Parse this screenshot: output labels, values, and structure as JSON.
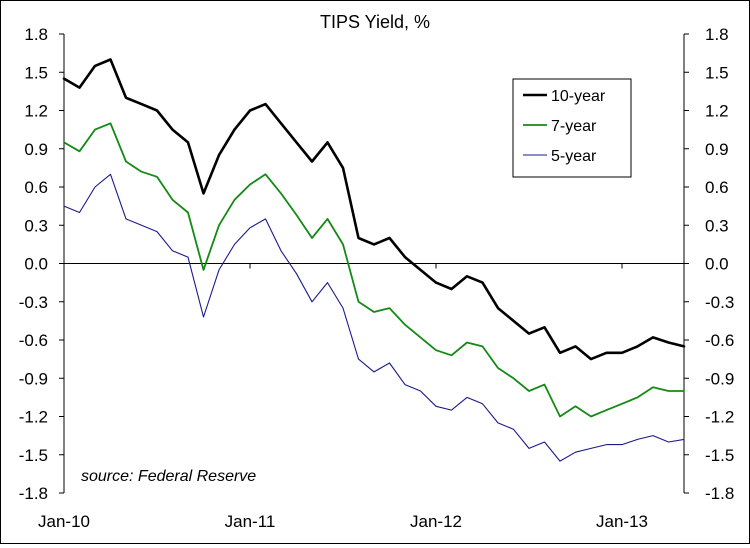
{
  "chart_data": {
    "type": "line",
    "title": "TIPS Yield, %",
    "annotation": "source: Federal Reserve",
    "ylim": [
      -1.8,
      1.8
    ],
    "y_ticks": [
      1.8,
      1.5,
      1.2,
      0.9,
      0.6,
      0.3,
      0.0,
      -0.3,
      -0.6,
      -0.9,
      -1.2,
      -1.5,
      -1.8
    ],
    "y_tick_labels": [
      "1.8",
      "1.5",
      "1.2",
      "0.9",
      "0.6",
      "0.3",
      "0.0",
      "-0.3",
      "-0.6",
      "-0.9",
      "-1.2",
      "-1.5",
      "-1.8"
    ],
    "secondary_y_axis": true,
    "x_ticks": [
      "2010-01",
      "2011-01",
      "2012-01",
      "2013-01"
    ],
    "x_tick_labels": [
      "Jan-10",
      "Jan-11",
      "Jan-12",
      "Jan-13"
    ],
    "xlim": [
      "2010-01",
      "2013-05"
    ],
    "legend": {
      "position": "top-right",
      "border": true
    },
    "grid": false,
    "x": [
      "2010-01",
      "2010-02",
      "2010-03",
      "2010-04",
      "2010-05",
      "2010-06",
      "2010-07",
      "2010-08",
      "2010-09",
      "2010-10",
      "2010-11",
      "2010-12",
      "2011-01",
      "2011-02",
      "2011-03",
      "2011-04",
      "2011-05",
      "2011-06",
      "2011-07",
      "2011-08",
      "2011-09",
      "2011-10",
      "2011-11",
      "2011-12",
      "2012-01",
      "2012-02",
      "2012-03",
      "2012-04",
      "2012-05",
      "2012-06",
      "2012-07",
      "2012-08",
      "2012-09",
      "2012-10",
      "2012-11",
      "2012-12",
      "2013-01",
      "2013-02",
      "2013-03",
      "2013-04",
      "2013-05"
    ],
    "series": [
      {
        "name": "10-year",
        "color": "#000000",
        "width": 2.6,
        "values": [
          1.45,
          1.38,
          1.55,
          1.6,
          1.3,
          1.25,
          1.2,
          1.05,
          0.95,
          0.55,
          0.85,
          1.05,
          1.2,
          1.25,
          1.1,
          0.95,
          0.8,
          0.95,
          0.75,
          0.2,
          0.15,
          0.2,
          0.05,
          -0.05,
          -0.15,
          -0.2,
          -0.1,
          -0.15,
          -0.35,
          -0.45,
          -0.55,
          -0.5,
          -0.7,
          -0.65,
          -0.75,
          -0.7,
          -0.7,
          -0.65,
          -0.58,
          -0.62,
          -0.65
        ]
      },
      {
        "name": "7-year",
        "color": "#138a13",
        "width": 1.8,
        "values": [
          0.95,
          0.88,
          1.05,
          1.1,
          0.8,
          0.72,
          0.68,
          0.5,
          0.4,
          -0.05,
          0.3,
          0.5,
          0.62,
          0.7,
          0.55,
          0.38,
          0.2,
          0.35,
          0.15,
          -0.3,
          -0.38,
          -0.35,
          -0.48,
          -0.58,
          -0.68,
          -0.72,
          -0.62,
          -0.65,
          -0.82,
          -0.9,
          -1.0,
          -0.95,
          -1.2,
          -1.12,
          -1.2,
          -1.15,
          -1.1,
          -1.05,
          -0.97,
          -1.0,
          -1.0
        ]
      },
      {
        "name": "5-year",
        "color": "#1a1a8a",
        "width": 1.1,
        "values": [
          0.45,
          0.4,
          0.6,
          0.7,
          0.35,
          0.3,
          0.25,
          0.1,
          0.05,
          -0.42,
          -0.05,
          0.15,
          0.28,
          0.35,
          0.1,
          -0.08,
          -0.3,
          -0.15,
          -0.35,
          -0.75,
          -0.85,
          -0.78,
          -0.95,
          -1.0,
          -1.12,
          -1.15,
          -1.05,
          -1.1,
          -1.25,
          -1.3,
          -1.45,
          -1.4,
          -1.55,
          -1.48,
          -1.45,
          -1.42,
          -1.42,
          -1.38,
          -1.35,
          -1.4,
          -1.38
        ]
      }
    ]
  }
}
